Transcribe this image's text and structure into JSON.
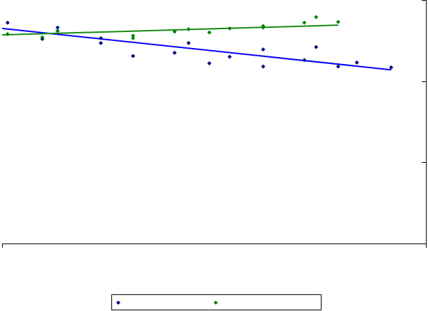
{
  "chart_data": {
    "type": "scatter",
    "series": [
      {
        "color": "#000080",
        "trend_color": "#0000ff",
        "x": [
          0.13,
          0.95,
          1.31,
          1.31,
          2.33,
          2.33,
          3.09,
          4.07,
          4.4,
          4.89,
          5.37,
          6.16,
          6.16,
          7.13,
          7.41,
          7.93,
          8.37,
          9.18
        ],
        "values": [
          2.72,
          2.52,
          2.66,
          2.62,
          2.53,
          2.47,
          2.31,
          2.35,
          2.47,
          2.22,
          2.3,
          2.39,
          2.18,
          2.26,
          2.42,
          2.18,
          2.23,
          2.17
        ],
        "trend_x": [
          0,
          9.18
        ],
        "trend_values": [
          2.65,
          2.14
        ]
      },
      {
        "color": "#008000",
        "trend_color": "#138a13",
        "x": [
          0.13,
          0.95,
          1.31,
          3.09,
          3.09,
          4.07,
          4.4,
          4.89,
          5.37,
          6.16,
          6.16,
          7.13,
          7.41,
          7.93
        ],
        "values": [
          2.58,
          2.54,
          2.62,
          2.56,
          2.53,
          2.61,
          2.64,
          2.6,
          2.65,
          2.68,
          2.66,
          2.72,
          2.79,
          2.73
        ],
        "trend_x": [
          0,
          7.93
        ],
        "trend_values": [
          2.57,
          2.69
        ]
      }
    ],
    "xlim": [
      0,
      10
    ],
    "xticks": [
      0,
      10
    ],
    "ylim": [
      0,
      3
    ],
    "yticks": [
      0,
      1,
      2,
      3
    ]
  }
}
